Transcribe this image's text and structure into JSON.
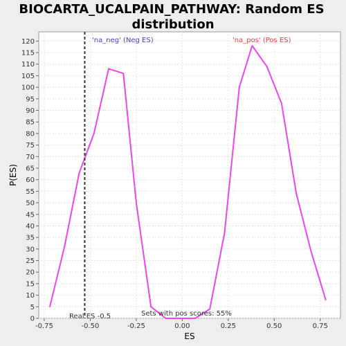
{
  "chart_data": {
    "type": "line",
    "title_line1": "BIOCARTA_UCALPAIN_PATHWAY: Random ES",
    "title_line2": "distribution",
    "xlabel": "ES",
    "ylabel": "P(ES)",
    "xlim": [
      -0.78,
      0.86
    ],
    "ylim": [
      0,
      124
    ],
    "x_ticks": [
      -0.75,
      -0.5,
      -0.25,
      0.0,
      0.25,
      0.5,
      0.75
    ],
    "x_tick_labels": [
      "-0.75",
      "-0.50",
      "-0.25",
      "0.00",
      "0.25",
      "0.50",
      "0.75"
    ],
    "y_ticks": [
      0,
      5,
      10,
      15,
      20,
      25,
      30,
      35,
      40,
      45,
      50,
      55,
      60,
      65,
      70,
      75,
      80,
      85,
      90,
      95,
      100,
      105,
      110,
      115,
      120
    ],
    "y_tick_labels": [
      "0",
      "5",
      "10",
      "15",
      "20",
      "25",
      "30",
      "35",
      "40",
      "45",
      "50",
      "55",
      "60",
      "65",
      "70",
      "75",
      "80",
      "85",
      "90",
      "95",
      "100",
      "105",
      "110",
      "115",
      "120"
    ],
    "grid": true,
    "series": [
      {
        "name": "",
        "color": "#ee44ee",
        "x": [
          -0.72,
          -0.64,
          -0.56,
          -0.48,
          -0.4,
          -0.32,
          -0.25,
          -0.17,
          -0.09,
          -0.01,
          0.07,
          0.15,
          0.23,
          0.31,
          0.38,
          0.46,
          0.54,
          0.62,
          0.7,
          0.78
        ],
        "y": [
          5,
          31,
          63,
          80,
          108,
          106,
          50,
          5,
          0,
          0,
          0,
          4,
          37,
          100,
          118,
          109,
          93,
          54,
          29,
          8
        ]
      }
    ],
    "real_es": -0.53,
    "annotations": {
      "neg_label": "'na_neg' (Neg ES)",
      "pos_label": "'na_pos' (Pos ES)",
      "real_es_label": "Real ES -0.5",
      "pos_scores_label": "Sets with pos scores: 55%"
    },
    "colors": {
      "neg": "#4444cc",
      "pos": "#dd4444",
      "line": "#ee44ee",
      "real_es_line": "#333333"
    }
  }
}
